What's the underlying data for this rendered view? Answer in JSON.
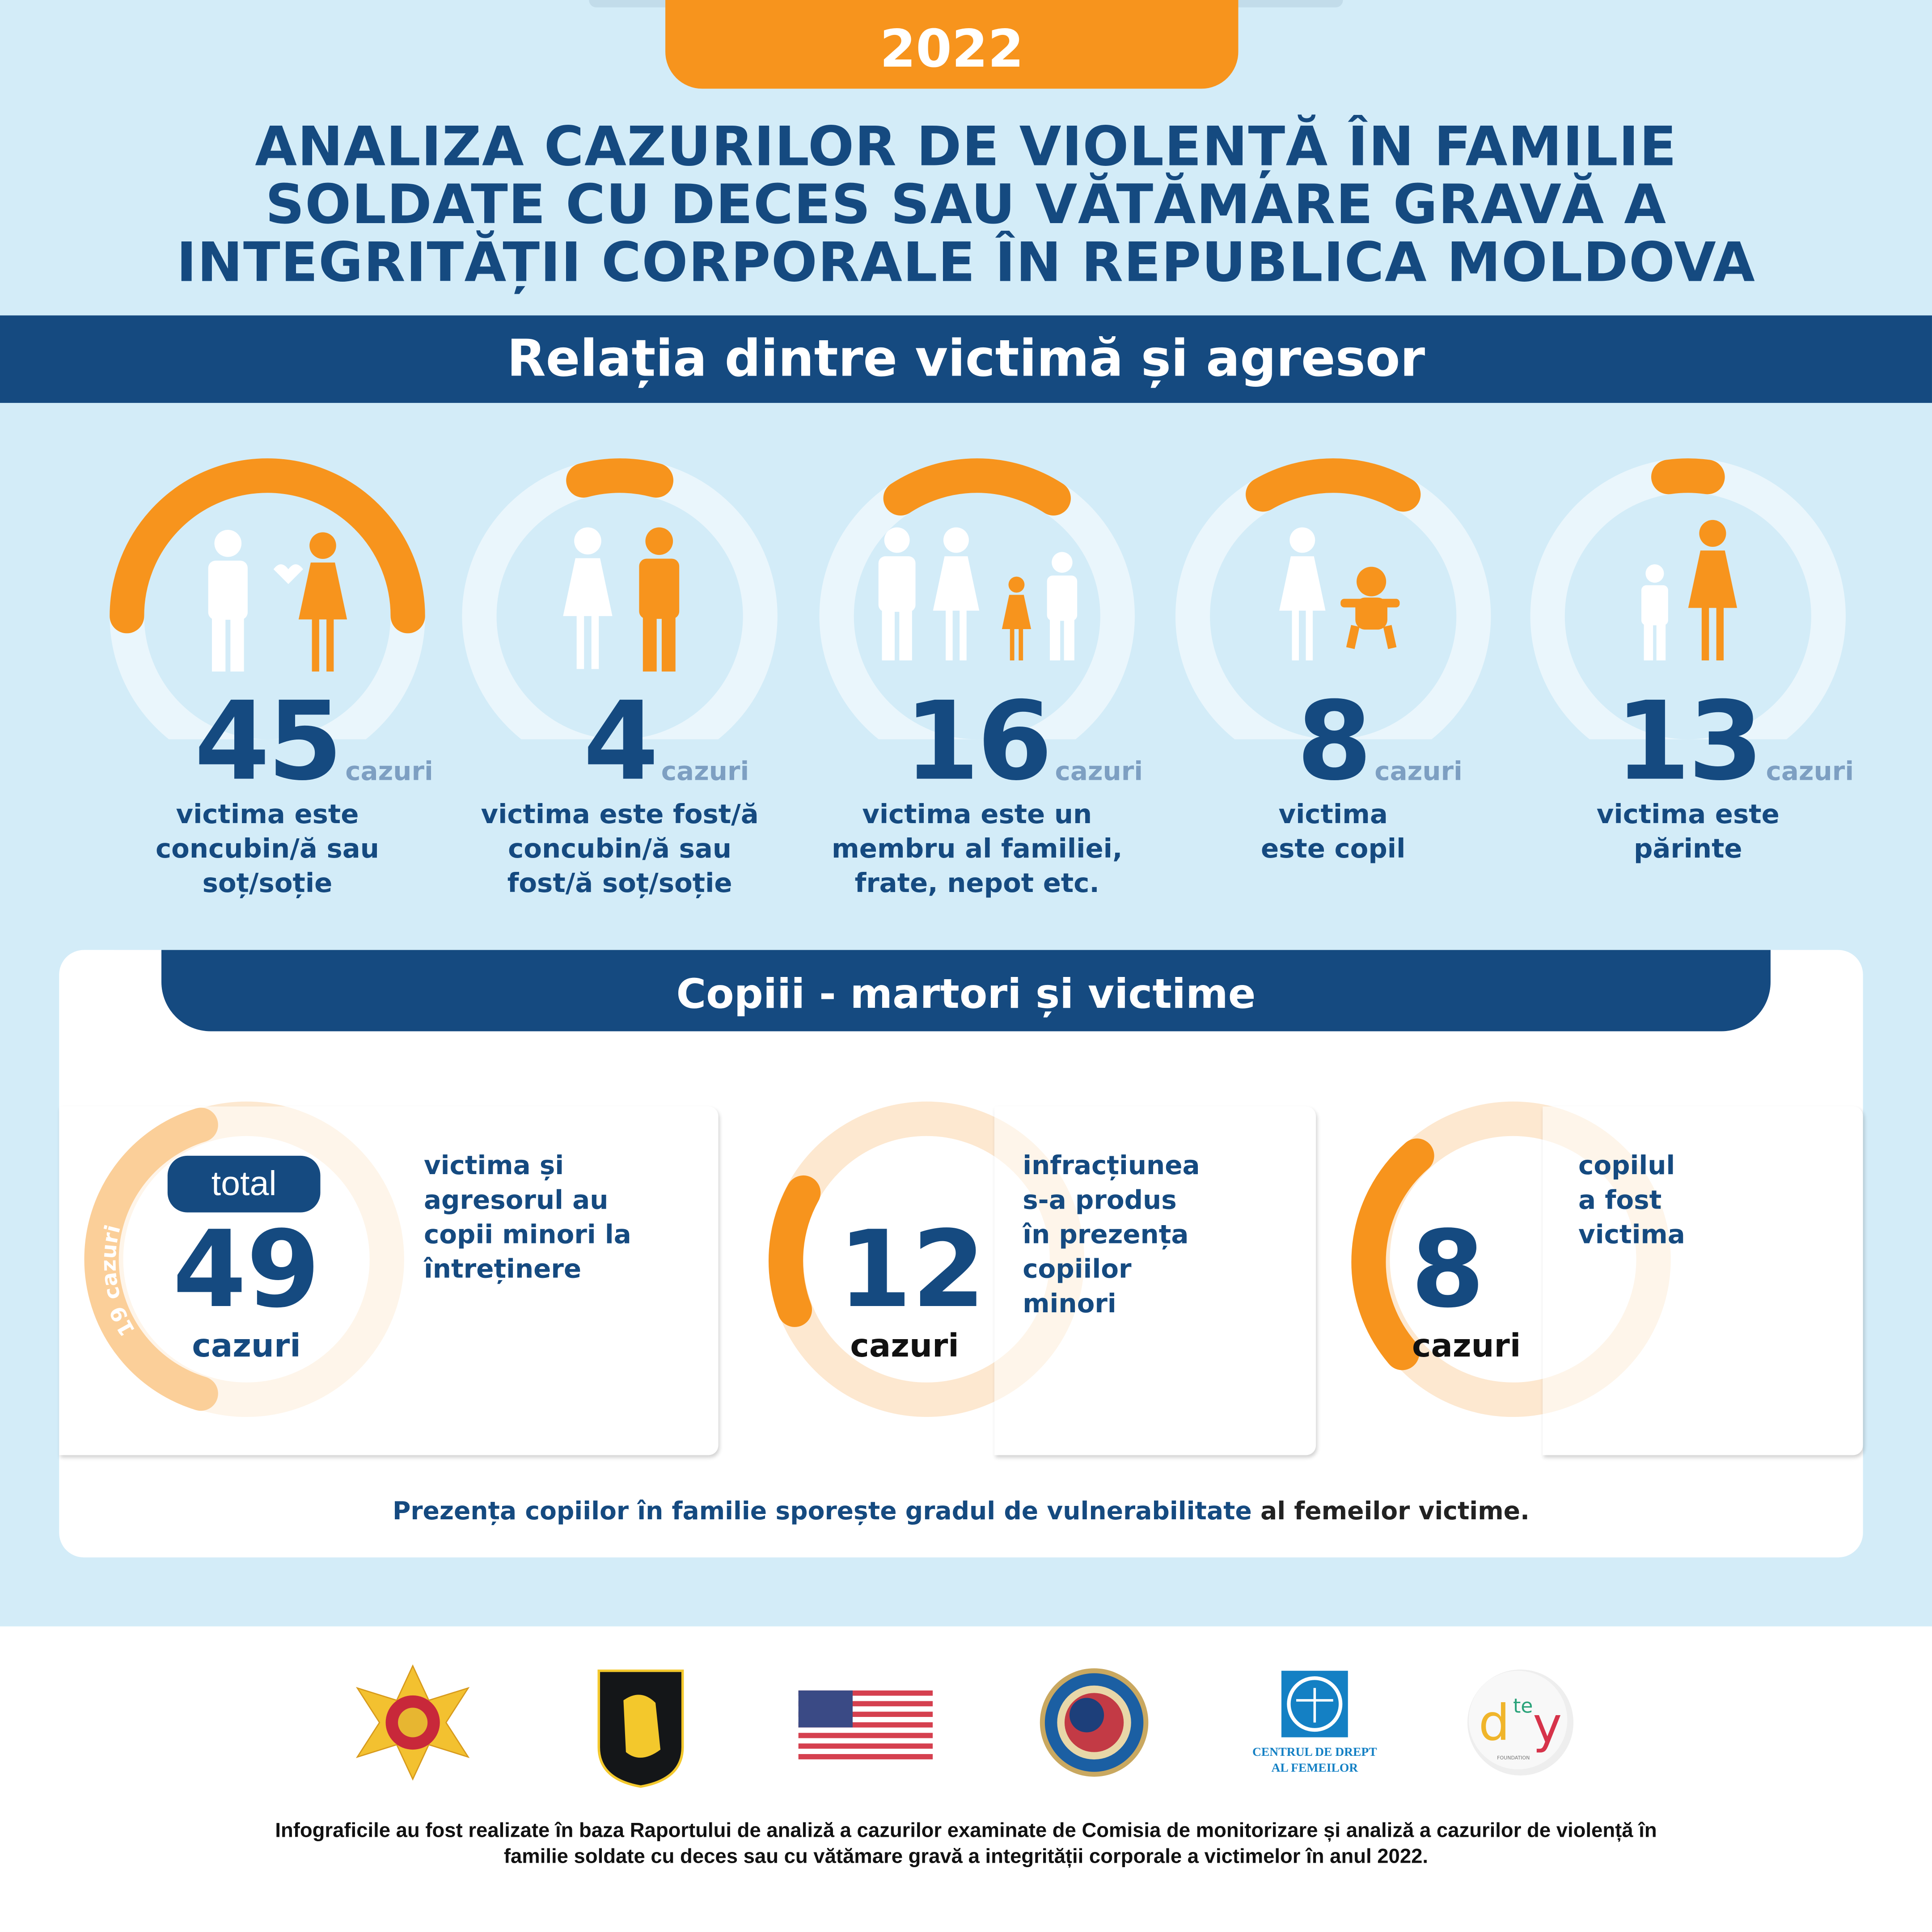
{
  "header": {
    "year": "2022",
    "title_lines": [
      "ANALIZA CAZURILOR DE VIOLENȚĂ ÎN FAMILIE",
      "SOLDATE CU DECES SAU VĂTĂMARE GRAVĂ A",
      "INTEGRITĂȚII CORPORALE ÎN REPUBLICA MOLDOVA"
    ]
  },
  "relation": {
    "title": "Relația dintre victimă și agresor",
    "unit": "cazuri",
    "items": [
      {
        "value": "45",
        "label_lines": [
          "victima este",
          "concubin/ă sau",
          "soț/soție"
        ],
        "icon": "couple-giving-heart-icon"
      },
      {
        "value": "4",
        "label_lines": [
          "victima este fost/ă",
          "concubin/ă sau",
          "fost/ă soț/soție"
        ],
        "icon": "woman-and-man-icon"
      },
      {
        "value": "16",
        "label_lines": [
          "victima este un",
          "membru al familiei,",
          "frate, nepot etc."
        ],
        "icon": "family-icon"
      },
      {
        "value": "8",
        "label_lines": [
          "victima",
          "este copil"
        ],
        "icon": "woman-and-baby-icon"
      },
      {
        "value": "13",
        "label_lines": [
          "victima este",
          "părinte"
        ],
        "icon": "child-and-mother-icon"
      }
    ]
  },
  "children": {
    "title": "Copiii - martori și victime",
    "total_badge": "total",
    "total_value": "49",
    "total_unit": "cazuri",
    "arc_label": "19 cazuri",
    "total_text_lines": [
      "victima și",
      "agresorul au",
      "copii minori la",
      "întreținere"
    ],
    "witness_value": "12",
    "witness_unit": "cazuri",
    "witness_text_lines": [
      "infracțiunea",
      "s-a produs",
      "în prezența",
      "copiilor",
      "minori"
    ],
    "victim_value": "8",
    "victim_unit": "cazuri",
    "victim_text_lines": [
      "copilul",
      "a fost",
      "victima"
    ],
    "summary_highlight": "Prezența copiilor în familie sporește gradul de vulnerabilitate",
    "summary_rest": " al femeilor victime."
  },
  "footer": {
    "logos": [
      {
        "name": "mai-star-emblem-logo"
      },
      {
        "name": "lion-shield-logo"
      },
      {
        "name": "us-flag-logo"
      },
      {
        "name": "inl-seal-logo"
      },
      {
        "name": "centrul-de-drept-logo",
        "text_lines": [
          "CENTRUL DE DREPT",
          "AL FEMEILOR"
        ]
      },
      {
        "name": "dtey-foundation-logo",
        "text": "FOUNDATION"
      }
    ],
    "note_lines": [
      "Infograficile au fost realizate în baza Raportului de analiză a cazurilor examinate de Comisia de monitorizare și analiză a cazurilor de violență în",
      "familie soldate cu deces sau cu vătămare gravă a integrității corporale a victimelor în anul 2022."
    ]
  },
  "colors": {
    "navy": "#154a80",
    "orange": "#f7941d",
    "background": "#d3ecf8",
    "ring": "#eaf6fc",
    "peach": "#fde8d0"
  }
}
